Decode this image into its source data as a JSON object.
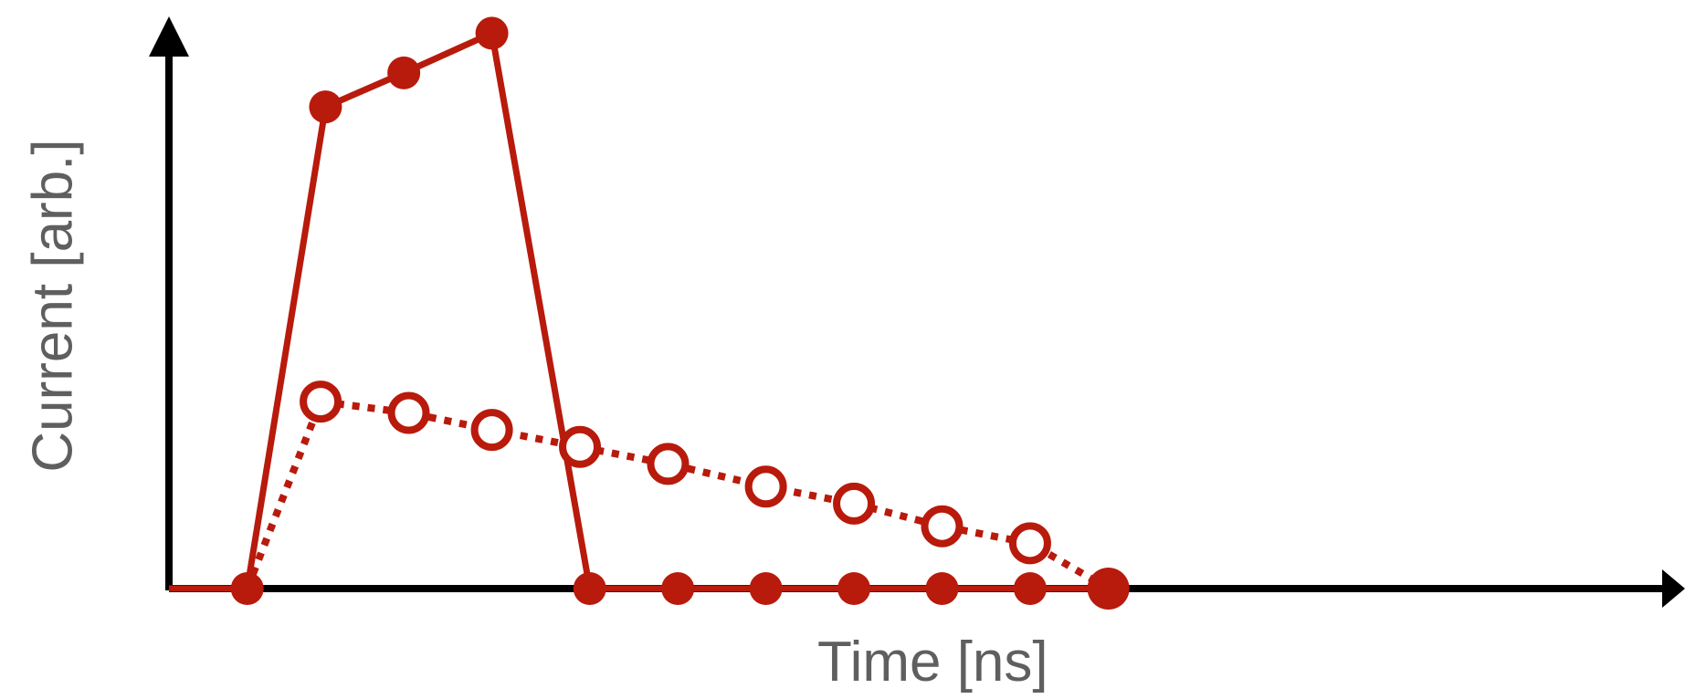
{
  "chart_data": {
    "type": "line",
    "title": "",
    "xlabel": "Time [ns]",
    "ylabel": "Current [arb.]",
    "xlim": [
      0,
      17.5
    ],
    "ylim": [
      0,
      10
    ],
    "grid": false,
    "legend": "none",
    "colors": {
      "series": "#b81a0c",
      "axis": "#000000",
      "label": "#5f5f5f"
    },
    "series": [
      {
        "style": "solid-filled-markers",
        "lead_in": [
          0,
          0
        ],
        "points": [
          [
            0.8,
            0
          ],
          [
            1.6,
            8.5
          ],
          [
            2.4,
            9.1
          ],
          [
            3.3,
            9.8
          ],
          [
            4.3,
            0
          ],
          [
            5.2,
            0
          ],
          [
            6.1,
            0
          ],
          [
            7.0,
            0
          ],
          [
            7.9,
            0
          ],
          [
            8.8,
            0
          ],
          [
            9.6,
            0
          ]
        ]
      },
      {
        "style": "dotted-open-markers",
        "points": [
          [
            0.8,
            0
          ],
          [
            1.55,
            3.3
          ],
          [
            2.45,
            3.1
          ],
          [
            3.3,
            2.8
          ],
          [
            4.2,
            2.5
          ],
          [
            5.1,
            2.2
          ],
          [
            6.1,
            1.8
          ],
          [
            7.0,
            1.5
          ],
          [
            7.9,
            1.1
          ],
          [
            8.8,
            0.8
          ],
          [
            9.6,
            0
          ]
        ]
      }
    ]
  }
}
